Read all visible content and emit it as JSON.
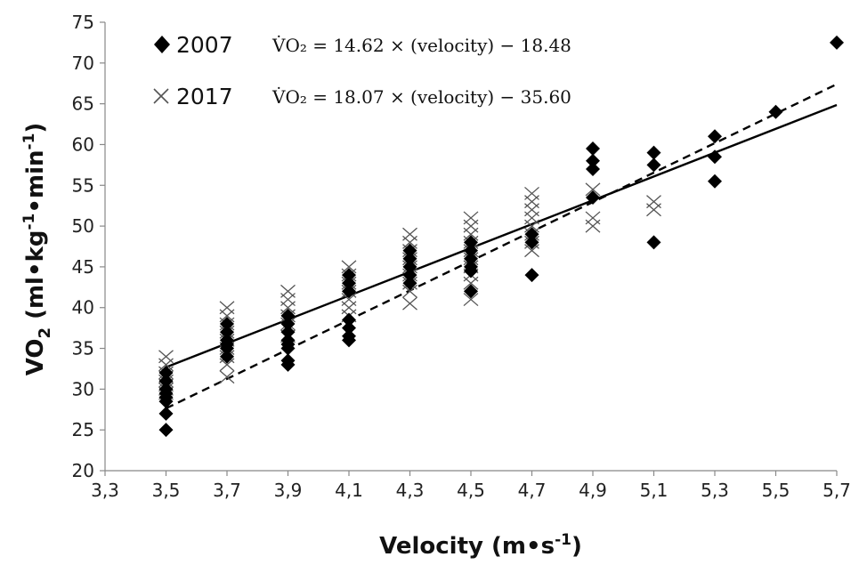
{
  "chart_data": {
    "type": "scatter",
    "xlabel": "Velocity (m•s",
    "xlabel_sup": "-1",
    "xlabel_end": ")",
    "ylabel": "VO",
    "ylabel_sub": "2",
    "ylabel_rest": " (ml•kg",
    "ylabel_sup1": "-1",
    "ylabel_mid": "•min",
    "ylabel_sup2": "-1",
    "ylabel_end": ")",
    "xlim": [
      3.3,
      5.7
    ],
    "ylim": [
      20,
      75
    ],
    "x_ticks": [
      3.3,
      3.5,
      3.7,
      3.9,
      4.1,
      4.3,
      4.5,
      4.7,
      4.9,
      5.1,
      5.3,
      5.5,
      5.7
    ],
    "x_tick_labels": [
      "3,3",
      "3,5",
      "3,7",
      "3,9",
      "4,1",
      "4,3",
      "4,5",
      "4,7",
      "4,9",
      "5,1",
      "5,3",
      "5,5",
      "5,7"
    ],
    "y_ticks": [
      20,
      25,
      30,
      35,
      40,
      45,
      50,
      55,
      60,
      65,
      70,
      75
    ],
    "y_tick_labels": [
      "20",
      "25",
      "30",
      "35",
      "40",
      "45",
      "50",
      "55",
      "60",
      "65",
      "70",
      "75"
    ],
    "grid": false,
    "legend_position": "top-left",
    "series": [
      {
        "name": "2007",
        "marker": "diamond",
        "color": "#000000",
        "equation": "V̇O₂ = 14.62 × (velocity) − 18.48",
        "fit": {
          "slope": 14.62,
          "intercept": -18.48,
          "x_range": [
            3.5,
            5.7
          ],
          "dash": false
        },
        "points": [
          [
            3.5,
            25
          ],
          [
            3.5,
            27
          ],
          [
            3.5,
            28.5
          ],
          [
            3.5,
            29
          ],
          [
            3.5,
            29.5
          ],
          [
            3.5,
            30
          ],
          [
            3.5,
            31
          ],
          [
            3.5,
            32
          ],
          [
            3.7,
            34
          ],
          [
            3.7,
            35
          ],
          [
            3.7,
            35.5
          ],
          [
            3.7,
            36
          ],
          [
            3.7,
            37
          ],
          [
            3.7,
            38
          ],
          [
            3.9,
            33
          ],
          [
            3.9,
            33.5
          ],
          [
            3.9,
            35
          ],
          [
            3.9,
            35.5
          ],
          [
            3.9,
            36
          ],
          [
            3.9,
            37
          ],
          [
            3.9,
            38
          ],
          [
            3.9,
            39
          ],
          [
            4.1,
            36
          ],
          [
            4.1,
            36.5
          ],
          [
            4.1,
            37.5
          ],
          [
            4.1,
            38.5
          ],
          [
            4.1,
            42
          ],
          [
            4.1,
            43
          ],
          [
            4.1,
            44
          ],
          [
            4.3,
            43
          ],
          [
            4.3,
            44
          ],
          [
            4.3,
            45
          ],
          [
            4.3,
            46
          ],
          [
            4.3,
            47
          ],
          [
            4.5,
            42
          ],
          [
            4.5,
            44.5
          ],
          [
            4.5,
            45
          ],
          [
            4.5,
            46
          ],
          [
            4.5,
            47
          ],
          [
            4.5,
            48
          ],
          [
            4.7,
            44
          ],
          [
            4.7,
            48
          ],
          [
            4.7,
            49
          ],
          [
            4.9,
            53.5
          ],
          [
            4.9,
            57
          ],
          [
            4.9,
            58
          ],
          [
            4.9,
            59.5
          ],
          [
            5.1,
            48
          ],
          [
            5.1,
            57.5
          ],
          [
            5.1,
            59
          ],
          [
            5.3,
            55.5
          ],
          [
            5.3,
            58.5
          ],
          [
            5.3,
            61
          ],
          [
            5.5,
            64
          ],
          [
            5.7,
            72.5
          ]
        ]
      },
      {
        "name": "2017",
        "marker": "x",
        "color": "#555555",
        "equation": "V̇O₂ = 18.07 × (velocity) − 35.60",
        "fit": {
          "slope": 18.07,
          "intercept": -35.6,
          "x_range": [
            3.5,
            5.7
          ],
          "dash": true
        },
        "points": [
          [
            3.5,
            29.5
          ],
          [
            3.5,
            30
          ],
          [
            3.5,
            30.5
          ],
          [
            3.5,
            31
          ],
          [
            3.5,
            31.5
          ],
          [
            3.5,
            32
          ],
          [
            3.5,
            33
          ],
          [
            3.5,
            34
          ],
          [
            3.7,
            31.5
          ],
          [
            3.7,
            33
          ],
          [
            3.7,
            34
          ],
          [
            3.7,
            35
          ],
          [
            3.7,
            36
          ],
          [
            3.7,
            37
          ],
          [
            3.7,
            38
          ],
          [
            3.7,
            39
          ],
          [
            3.7,
            40
          ],
          [
            3.9,
            36.5
          ],
          [
            3.9,
            38
          ],
          [
            3.9,
            39
          ],
          [
            3.9,
            40
          ],
          [
            3.9,
            41
          ],
          [
            3.9,
            42
          ],
          [
            4.1,
            39
          ],
          [
            4.1,
            40
          ],
          [
            4.1,
            41
          ],
          [
            4.1,
            42
          ],
          [
            4.1,
            43
          ],
          [
            4.1,
            44
          ],
          [
            4.1,
            45
          ],
          [
            4.3,
            40.5
          ],
          [
            4.3,
            42
          ],
          [
            4.3,
            43
          ],
          [
            4.3,
            44
          ],
          [
            4.3,
            45
          ],
          [
            4.3,
            46
          ],
          [
            4.3,
            47
          ],
          [
            4.3,
            48
          ],
          [
            4.3,
            49
          ],
          [
            4.5,
            41
          ],
          [
            4.5,
            43
          ],
          [
            4.5,
            44
          ],
          [
            4.5,
            45
          ],
          [
            4.5,
            46
          ],
          [
            4.5,
            47
          ],
          [
            4.5,
            48
          ],
          [
            4.5,
            49
          ],
          [
            4.5,
            50
          ],
          [
            4.5,
            51
          ],
          [
            4.7,
            47
          ],
          [
            4.7,
            48
          ],
          [
            4.7,
            49
          ],
          [
            4.7,
            50
          ],
          [
            4.7,
            51
          ],
          [
            4.7,
            52
          ],
          [
            4.7,
            53
          ],
          [
            4.7,
            54
          ],
          [
            4.9,
            50
          ],
          [
            4.9,
            51
          ],
          [
            4.9,
            54.5
          ],
          [
            5.1,
            52
          ],
          [
            5.1,
            53
          ]
        ]
      }
    ]
  }
}
